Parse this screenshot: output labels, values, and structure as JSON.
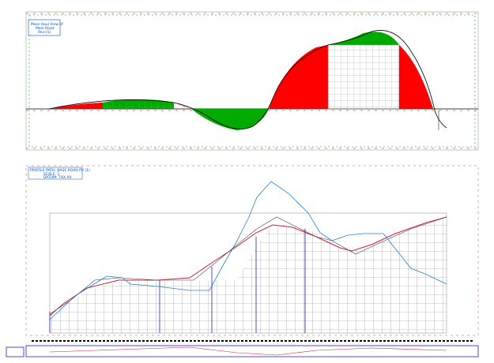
{
  "mass_haul": {
    "legend": [
      "Mass Haul View of",
      "Main Road",
      "Rev-(1)"
    ]
  },
  "profile": {
    "legend": [
      "PROFILE PATH: BASE ROAD PV (1)",
      "SCALE: 1'",
      "DATUM: 7XX.XX"
    ]
  }
}
